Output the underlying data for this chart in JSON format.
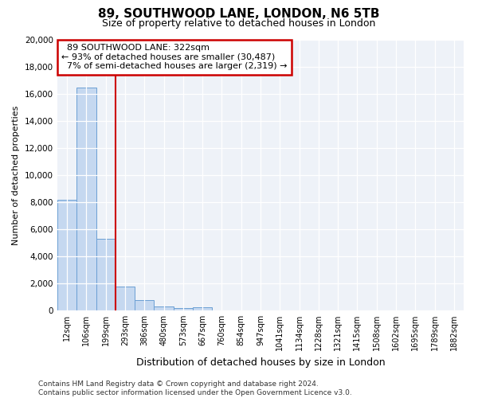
{
  "title1": "89, SOUTHWOOD LANE, LONDON, N6 5TB",
  "title2": "Size of property relative to detached houses in London",
  "xlabel": "Distribution of detached houses by size in London",
  "ylabel": "Number of detached properties",
  "property_label": "89 SOUTHWOOD LANE: 322sqm",
  "pct_smaller": 93,
  "n_smaller": "30,487",
  "pct_larger": 7,
  "n_larger": "2,319",
  "bin_labels": [
    "12sqm",
    "106sqm",
    "199sqm",
    "293sqm",
    "386sqm",
    "480sqm",
    "573sqm",
    "667sqm",
    "760sqm",
    "854sqm",
    "947sqm",
    "1041sqm",
    "1134sqm",
    "1228sqm",
    "1321sqm",
    "1415sqm",
    "1508sqm",
    "1602sqm",
    "1695sqm",
    "1789sqm",
    "1882sqm"
  ],
  "bar_values": [
    8200,
    16500,
    5300,
    1750,
    750,
    300,
    200,
    250,
    0,
    0,
    0,
    0,
    0,
    0,
    0,
    0,
    0,
    0,
    0,
    0,
    0
  ],
  "bar_color": "#c5d8f0",
  "bar_edge_color": "#6b9fd4",
  "vline_color": "#cc0000",
  "vline_x_idx": 2.5,
  "annotation_box_color": "#cc0000",
  "ylim": [
    0,
    20000
  ],
  "yticks": [
    0,
    2000,
    4000,
    6000,
    8000,
    10000,
    12000,
    14000,
    16000,
    18000,
    20000
  ],
  "title1_fontsize": 11,
  "title2_fontsize": 9,
  "footnote1": "Contains HM Land Registry data © Crown copyright and database right 2024.",
  "footnote2": "Contains public sector information licensed under the Open Government Licence v3.0."
}
